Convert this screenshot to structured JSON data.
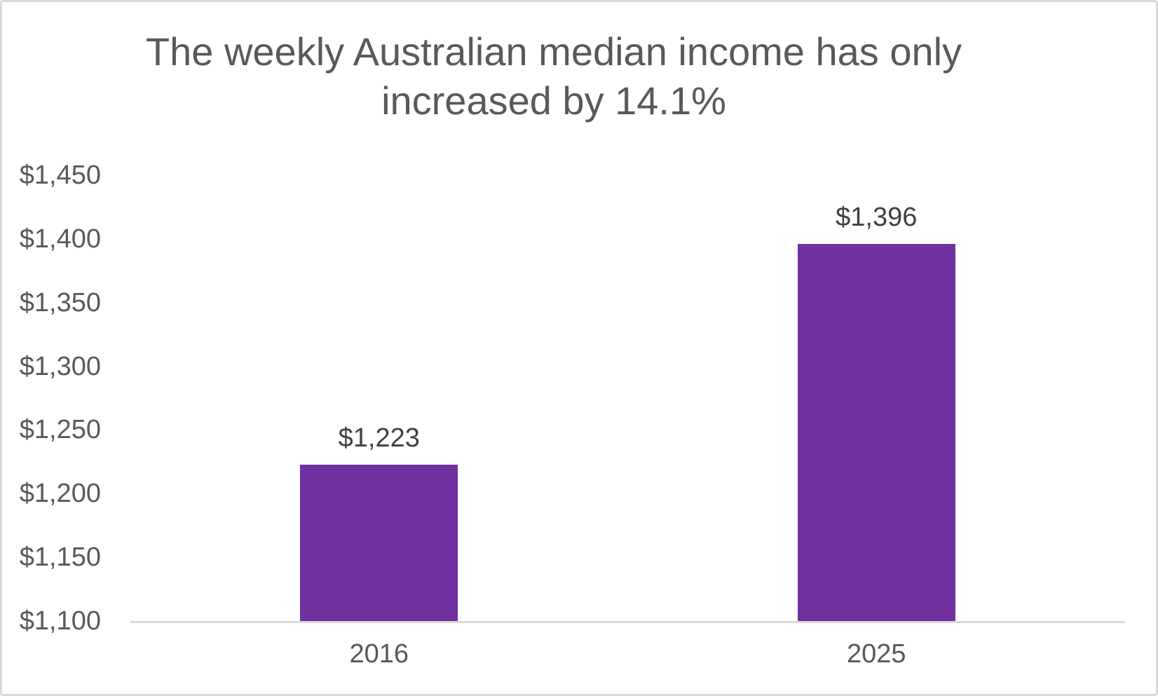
{
  "frame": {
    "background": "#FFFFFF",
    "border_color": "#D9D9D9"
  },
  "chart_data": {
    "type": "bar",
    "title": "The weekly Australian median income has only increased by 14.1%",
    "categories": [
      "2016",
      "2025"
    ],
    "values": [
      1223,
      1396
    ],
    "value_labels": [
      "$1,223",
      "$1,396"
    ],
    "ylim": [
      1100,
      1450
    ],
    "ytick_values": [
      1100,
      1150,
      1200,
      1250,
      1300,
      1350,
      1400,
      1450
    ],
    "ytick_labels": [
      "$1,100",
      "$1,150",
      "$1,200",
      "$1,250",
      "$1,300",
      "$1,350",
      "$1,400",
      "$1,450"
    ],
    "xlabel": "",
    "ylabel": "",
    "grid": false,
    "legend_position": "none",
    "bar_color": "#7030A0",
    "title_color": "#595959",
    "axis_label_color": "#595959",
    "data_label_color": "#404040",
    "axis_line_color": "#D9D9D9"
  }
}
